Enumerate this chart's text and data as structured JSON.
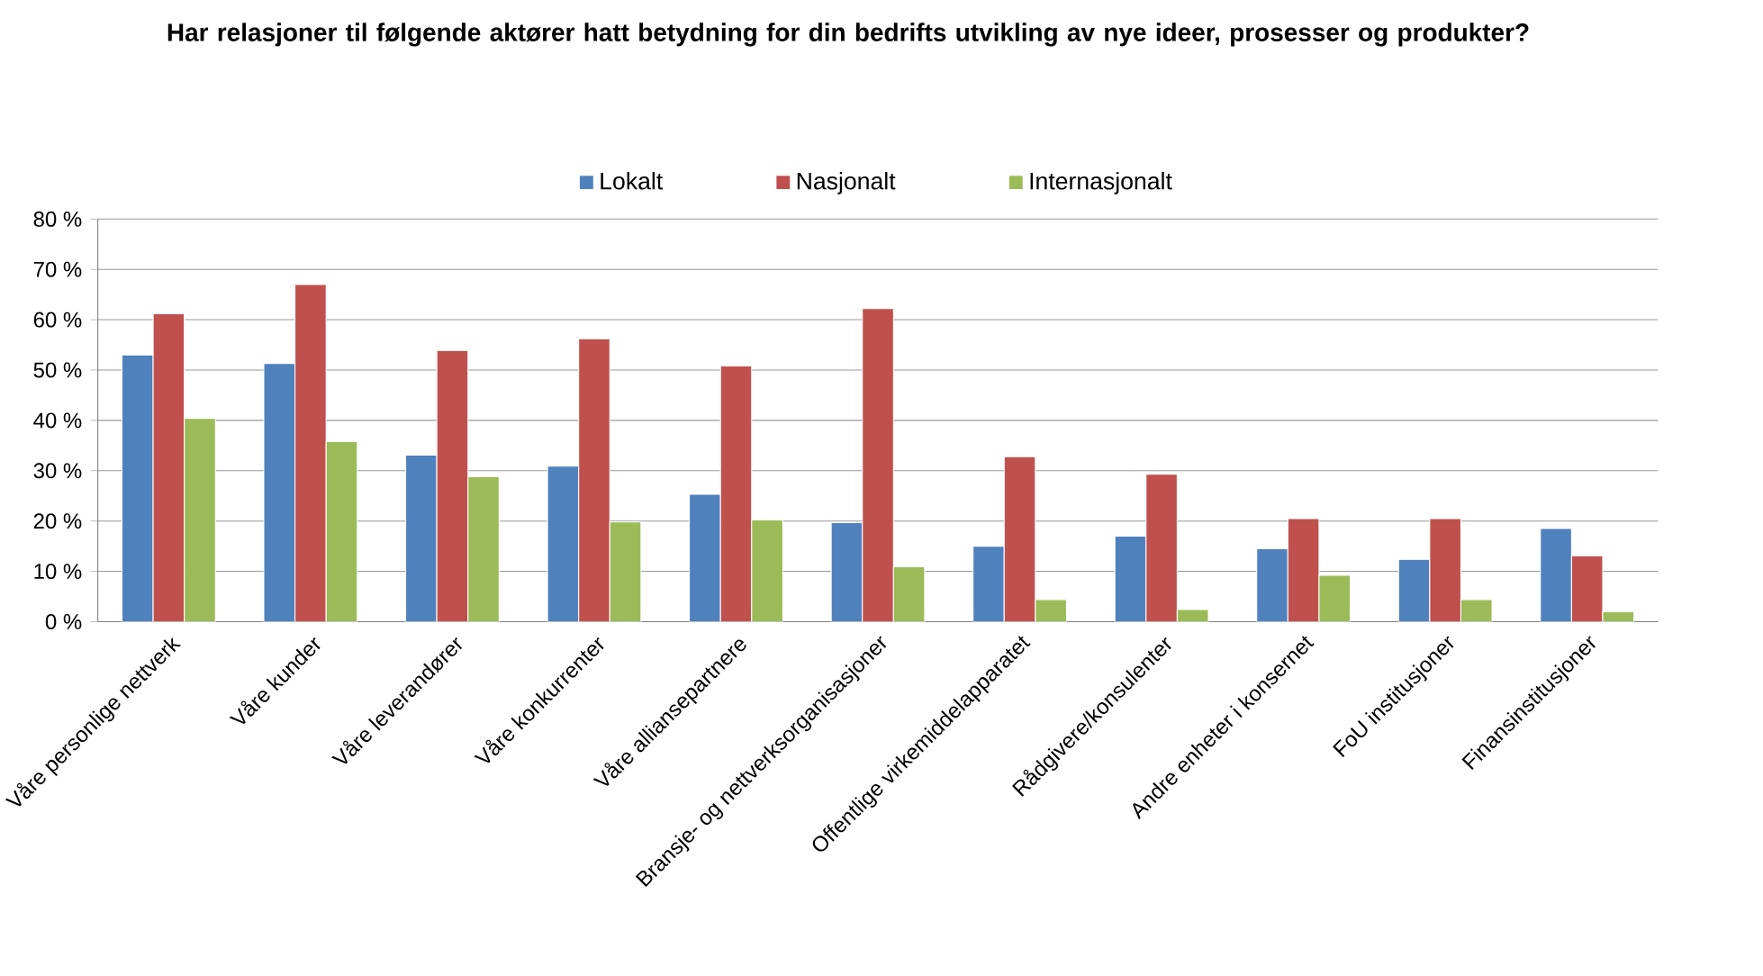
{
  "chart_data": {
    "type": "bar",
    "title": "Har relasjoner til følgende aktører hatt betydning for din bedrifts utvikling av nye ideer, prosesser og produkter?",
    "categories": [
      "Våre personlige nettverk",
      "Våre kunder",
      "Våre leverandører",
      "Våre konkurrenter",
      "Våre alliansepartnere",
      "Bransje- og nettverksorganisasjoner",
      "Offentlige virkemiddelapparatet",
      "Rådgivere/konsulenter",
      "Andre enheter i konsernet",
      "FoU institusjoner",
      "Finansinstitusjoner"
    ],
    "series": [
      {
        "name": "Lokalt",
        "color": "#4f81bd",
        "values": [
          53,
          51.3,
          33.1,
          30.9,
          25.3,
          19.7,
          15,
          17,
          14.5,
          12.4,
          18.5
        ]
      },
      {
        "name": "Nasjonalt",
        "color": "#c0504d",
        "values": [
          61.2,
          67,
          53.9,
          56.2,
          50.8,
          62.2,
          32.8,
          29.3,
          20.5,
          20.5,
          13.1
        ]
      },
      {
        "name": "Internasjonalt",
        "color": "#9bbb59",
        "values": [
          40.4,
          35.8,
          28.8,
          19.8,
          20.2,
          10.9,
          4.4,
          2.4,
          9.2,
          4.4,
          2
        ]
      }
    ],
    "ylim": [
      0,
      80
    ],
    "yticks": [
      {
        "value": 0,
        "label": "0 %"
      },
      {
        "value": 10,
        "label": "10 %"
      },
      {
        "value": 20,
        "label": "20 %"
      },
      {
        "value": 30,
        "label": "30 %"
      },
      {
        "value": 40,
        "label": "40 %"
      },
      {
        "value": 50,
        "label": "50 %"
      },
      {
        "value": 60,
        "label": "60 %"
      },
      {
        "value": 70,
        "label": "70 %"
      },
      {
        "value": 80,
        "label": "80 %"
      }
    ],
    "grid": "y",
    "legend": "top"
  }
}
